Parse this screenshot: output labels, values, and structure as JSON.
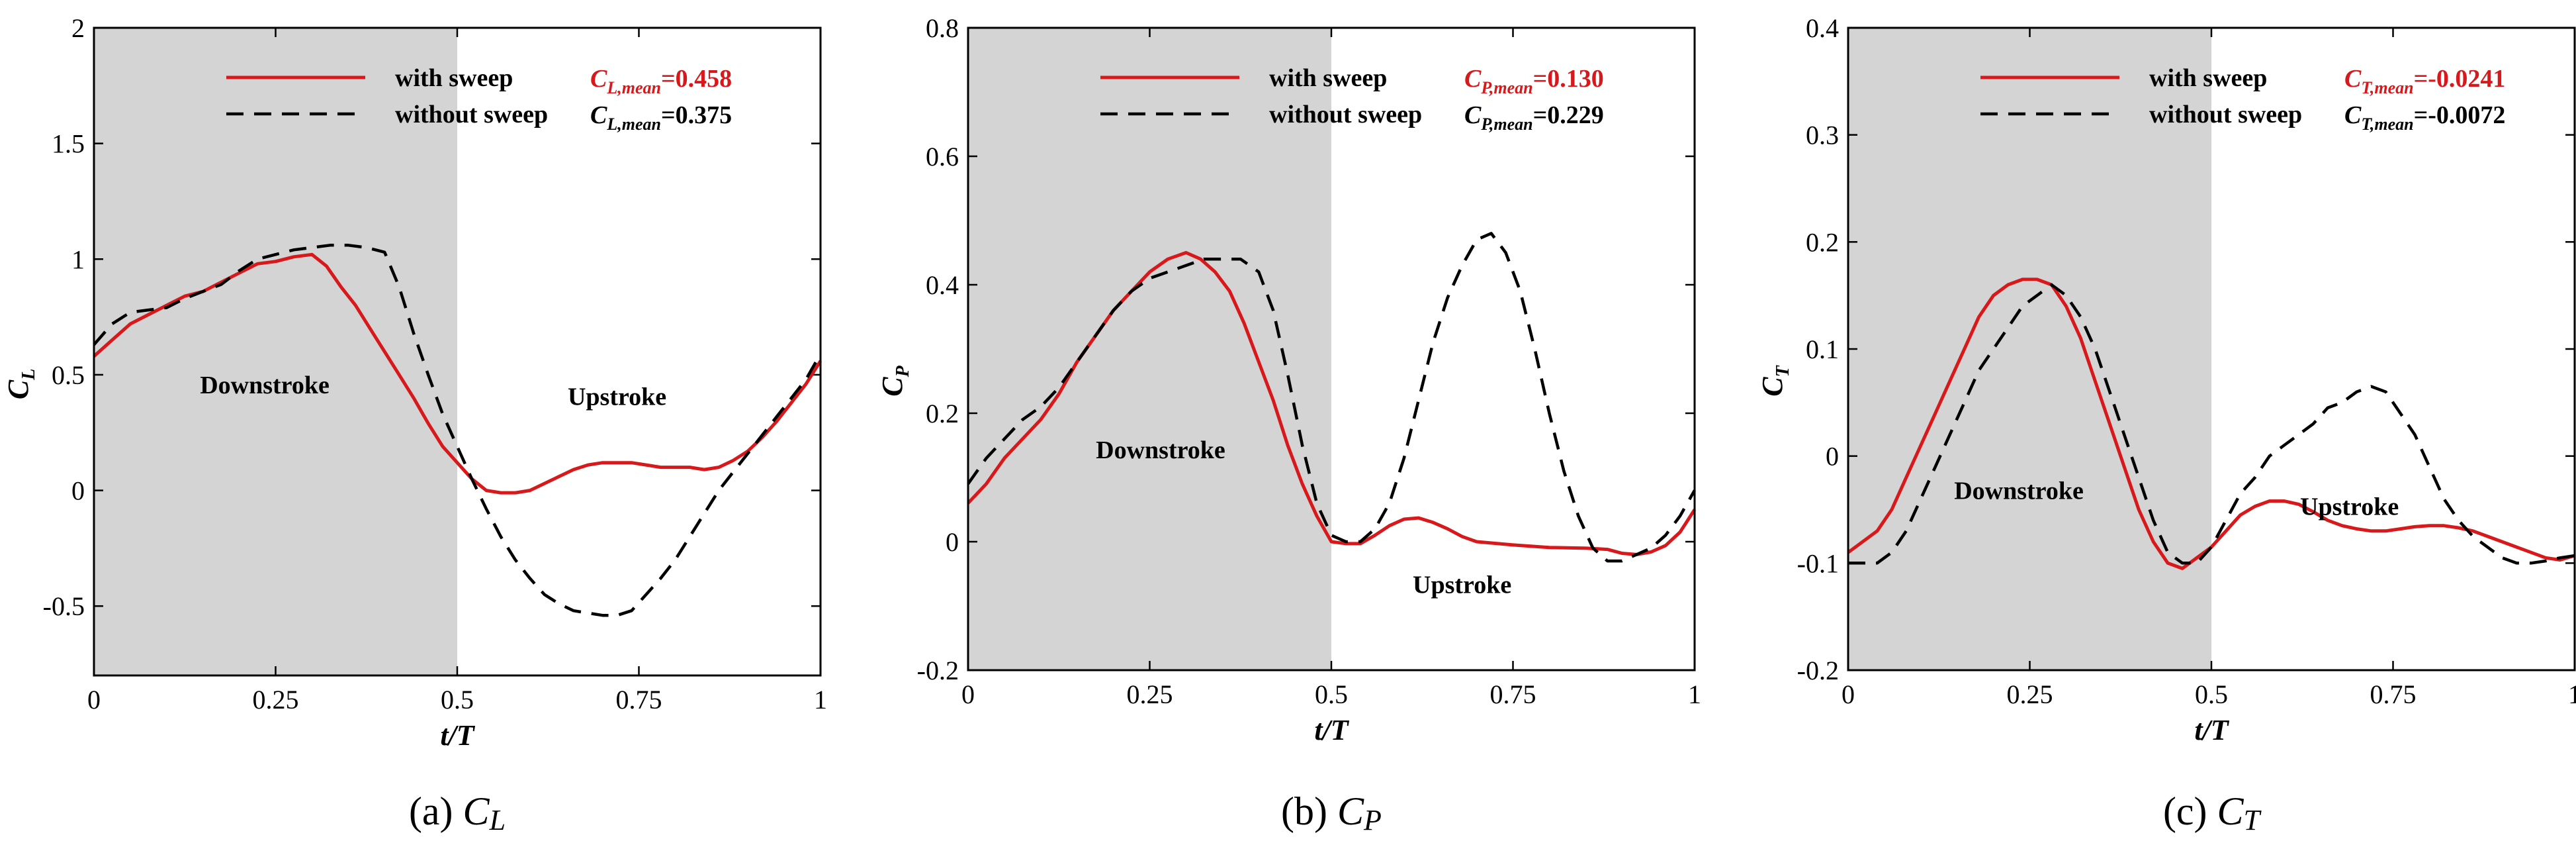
{
  "figure": {
    "panels_caption_note": ""
  },
  "legend": {
    "with_sweep": "with sweep",
    "without_sweep": "without sweep"
  },
  "colors": {
    "with_sweep": "#d7191c",
    "without_sweep": "#000000",
    "downstroke_shade": "#d4d4d4",
    "mean_with": "#d7191c",
    "mean_without": "#000000"
  },
  "chart_data": [
    {
      "id": "a",
      "type": "line",
      "caption_letter": "(a)",
      "caption_symbol": "C",
      "caption_sub": "L",
      "ylabel_main": "C",
      "ylabel_sub": "L",
      "xlabel": "t/T",
      "xlim": [
        0,
        1
      ],
      "ylim": [
        -0.8,
        2
      ],
      "xticks": [
        0,
        0.25,
        0.5,
        0.75,
        1
      ],
      "xtick_labels": [
        "0",
        "0.25",
        "0.5",
        "0.75",
        "1"
      ],
      "yticks": [
        -0.5,
        0,
        0.5,
        1,
        1.5,
        2
      ],
      "ytick_labels": [
        "-0.5",
        "0",
        "0.5",
        "1",
        "1.5",
        "2"
      ],
      "shade_x": [
        0,
        0.5
      ],
      "phase_labels": [
        {
          "text": "Downstroke",
          "x": 0.235,
          "y": 0.42
        },
        {
          "text": "Upstroke",
          "x": 0.72,
          "y": 0.37
        }
      ],
      "mean_labels": [
        {
          "sym": "C",
          "sub": "L,mean",
          "value": "=0.458",
          "series": "with"
        },
        {
          "sym": "C",
          "sub": "L,mean",
          "value": "=0.375",
          "series": "without"
        }
      ],
      "series": [
        {
          "name": "with sweep",
          "x": [
            0,
            0.025,
            0.05,
            0.075,
            0.1,
            0.125,
            0.15,
            0.175,
            0.2,
            0.225,
            0.25,
            0.275,
            0.3,
            0.32,
            0.34,
            0.36,
            0.38,
            0.4,
            0.42,
            0.44,
            0.46,
            0.48,
            0.5,
            0.52,
            0.54,
            0.56,
            0.58,
            0.6,
            0.62,
            0.64,
            0.66,
            0.68,
            0.7,
            0.72,
            0.74,
            0.76,
            0.78,
            0.8,
            0.82,
            0.84,
            0.86,
            0.88,
            0.9,
            0.92,
            0.94,
            0.96,
            0.98,
            1.0
          ],
          "values": [
            0.58,
            0.65,
            0.72,
            0.76,
            0.8,
            0.84,
            0.86,
            0.9,
            0.94,
            0.98,
            0.99,
            1.01,
            1.02,
            0.97,
            0.88,
            0.8,
            0.7,
            0.6,
            0.5,
            0.4,
            0.29,
            0.19,
            0.12,
            0.05,
            0.0,
            -0.01,
            -0.01,
            0.0,
            0.03,
            0.06,
            0.09,
            0.11,
            0.12,
            0.12,
            0.12,
            0.11,
            0.1,
            0.1,
            0.1,
            0.09,
            0.1,
            0.13,
            0.17,
            0.23,
            0.3,
            0.38,
            0.46,
            0.56
          ]
        },
        {
          "name": "without sweep",
          "x": [
            0,
            0.025,
            0.05,
            0.075,
            0.1,
            0.125,
            0.15,
            0.175,
            0.2,
            0.225,
            0.25,
            0.275,
            0.3,
            0.325,
            0.35,
            0.375,
            0.4,
            0.42,
            0.44,
            0.46,
            0.48,
            0.5,
            0.52,
            0.54,
            0.56,
            0.58,
            0.6,
            0.62,
            0.64,
            0.66,
            0.68,
            0.7,
            0.72,
            0.74,
            0.76,
            0.78,
            0.8,
            0.82,
            0.84,
            0.86,
            0.88,
            0.9,
            0.92,
            0.94,
            0.96,
            0.98,
            1.0
          ],
          "values": [
            0.63,
            0.72,
            0.77,
            0.78,
            0.79,
            0.83,
            0.86,
            0.89,
            0.95,
            1.0,
            1.02,
            1.04,
            1.05,
            1.06,
            1.06,
            1.05,
            1.03,
            0.88,
            0.68,
            0.5,
            0.33,
            0.19,
            0.05,
            -0.08,
            -0.2,
            -0.3,
            -0.38,
            -0.45,
            -0.49,
            -0.52,
            -0.53,
            -0.54,
            -0.54,
            -0.52,
            -0.45,
            -0.38,
            -0.3,
            -0.2,
            -0.1,
            0.0,
            0.08,
            0.16,
            0.24,
            0.32,
            0.4,
            0.48,
            0.59
          ]
        }
      ]
    },
    {
      "id": "b",
      "type": "line",
      "caption_letter": "(b)",
      "caption_symbol": "C",
      "caption_sub": "P",
      "ylabel_main": "C",
      "ylabel_sub": "P",
      "xlabel": "t/T",
      "xlim": [
        0,
        1
      ],
      "ylim": [
        -0.2,
        0.8
      ],
      "xticks": [
        0,
        0.25,
        0.5,
        0.75,
        1
      ],
      "xtick_labels": [
        "0",
        "0.25",
        "0.5",
        "0.75",
        "1"
      ],
      "yticks": [
        -0.2,
        0,
        0.2,
        0.4,
        0.6,
        0.8
      ],
      "ytick_labels": [
        "-0.2",
        "0",
        "0.2",
        "0.4",
        "0.6",
        "0.8"
      ],
      "shade_x": [
        0,
        0.5
      ],
      "phase_labels": [
        {
          "text": "Downstroke",
          "x": 0.265,
          "y": 0.13
        },
        {
          "text": "Upstroke",
          "x": 0.68,
          "y": -0.08
        }
      ],
      "mean_labels": [
        {
          "sym": "C",
          "sub": "P,mean",
          "value": "=0.130",
          "series": "with"
        },
        {
          "sym": "C",
          "sub": "P,mean",
          "value": "=0.229",
          "series": "without"
        }
      ],
      "series": [
        {
          "name": "with sweep",
          "x": [
            0,
            0.025,
            0.05,
            0.075,
            0.1,
            0.125,
            0.15,
            0.175,
            0.2,
            0.225,
            0.25,
            0.275,
            0.3,
            0.32,
            0.34,
            0.36,
            0.38,
            0.4,
            0.42,
            0.44,
            0.46,
            0.48,
            0.5,
            0.52,
            0.54,
            0.56,
            0.58,
            0.6,
            0.62,
            0.64,
            0.66,
            0.68,
            0.7,
            0.75,
            0.8,
            0.85,
            0.88,
            0.9,
            0.92,
            0.94,
            0.96,
            0.98,
            1.0
          ],
          "values": [
            0.06,
            0.09,
            0.13,
            0.16,
            0.19,
            0.23,
            0.28,
            0.32,
            0.36,
            0.39,
            0.42,
            0.44,
            0.45,
            0.44,
            0.42,
            0.39,
            0.34,
            0.28,
            0.22,
            0.15,
            0.09,
            0.04,
            0.0,
            -0.003,
            -0.003,
            0.01,
            0.025,
            0.035,
            0.037,
            0.03,
            0.02,
            0.008,
            0.0,
            -0.005,
            -0.009,
            -0.01,
            -0.012,
            -0.018,
            -0.02,
            -0.016,
            -0.006,
            0.015,
            0.05
          ]
        },
        {
          "name": "without sweep",
          "x": [
            0,
            0.025,
            0.05,
            0.075,
            0.1,
            0.125,
            0.15,
            0.175,
            0.2,
            0.225,
            0.25,
            0.275,
            0.3,
            0.325,
            0.35,
            0.375,
            0.4,
            0.42,
            0.44,
            0.46,
            0.48,
            0.5,
            0.52,
            0.54,
            0.56,
            0.58,
            0.6,
            0.62,
            0.64,
            0.66,
            0.68,
            0.7,
            0.72,
            0.74,
            0.76,
            0.78,
            0.8,
            0.82,
            0.84,
            0.86,
            0.88,
            0.9,
            0.92,
            0.94,
            0.96,
            0.98,
            1.0
          ],
          "values": [
            0.09,
            0.13,
            0.16,
            0.19,
            0.21,
            0.24,
            0.28,
            0.32,
            0.36,
            0.39,
            0.41,
            0.42,
            0.43,
            0.44,
            0.44,
            0.44,
            0.42,
            0.36,
            0.26,
            0.15,
            0.06,
            0.01,
            0.0,
            0.0,
            0.02,
            0.06,
            0.13,
            0.22,
            0.31,
            0.38,
            0.43,
            0.47,
            0.48,
            0.45,
            0.39,
            0.3,
            0.2,
            0.11,
            0.04,
            -0.01,
            -0.03,
            -0.03,
            -0.02,
            -0.01,
            0.01,
            0.04,
            0.08
          ]
        }
      ]
    },
    {
      "id": "c",
      "type": "line",
      "caption_letter": "(c)",
      "caption_symbol": "C",
      "caption_sub": "T",
      "ylabel_main": "C",
      "ylabel_sub": "T",
      "xlabel": "t/T",
      "xlim": [
        0,
        1
      ],
      "ylim": [
        -0.2,
        0.4
      ],
      "xticks": [
        0,
        0.25,
        0.5,
        0.75,
        1
      ],
      "xtick_labels": [
        "0",
        "0.25",
        "0.5",
        "0.75",
        "1"
      ],
      "yticks": [
        -0.2,
        -0.1,
        0,
        0.1,
        0.2,
        0.3,
        0.4
      ],
      "ytick_labels": [
        "-0.2",
        "-0.1",
        "0",
        "0.1",
        "0.2",
        "0.3",
        "0.4"
      ],
      "shade_x": [
        0,
        0.5
      ],
      "phase_labels": [
        {
          "text": "Downstroke",
          "x": 0.235,
          "y": -0.04
        },
        {
          "text": "Upstroke",
          "x": 0.69,
          "y": -0.055
        }
      ],
      "mean_labels": [
        {
          "sym": "C",
          "sub": "T,mean",
          "value": "=-0.0241",
          "series": "with"
        },
        {
          "sym": "C",
          "sub": "T,mean",
          "value": "=-0.0072",
          "series": "without"
        }
      ],
      "series": [
        {
          "name": "with sweep",
          "x": [
            0,
            0.02,
            0.04,
            0.06,
            0.08,
            0.1,
            0.12,
            0.14,
            0.16,
            0.18,
            0.2,
            0.22,
            0.24,
            0.26,
            0.28,
            0.3,
            0.32,
            0.34,
            0.36,
            0.38,
            0.4,
            0.42,
            0.44,
            0.46,
            0.48,
            0.5,
            0.52,
            0.54,
            0.56,
            0.58,
            0.6,
            0.62,
            0.64,
            0.66,
            0.68,
            0.7,
            0.72,
            0.74,
            0.76,
            0.78,
            0.8,
            0.82,
            0.84,
            0.86,
            0.88,
            0.9,
            0.92,
            0.94,
            0.96,
            0.98,
            1.0
          ],
          "values": [
            -0.09,
            -0.08,
            -0.07,
            -0.05,
            -0.02,
            0.01,
            0.04,
            0.07,
            0.1,
            0.13,
            0.15,
            0.16,
            0.165,
            0.165,
            0.16,
            0.14,
            0.11,
            0.07,
            0.03,
            -0.01,
            -0.05,
            -0.08,
            -0.1,
            -0.105,
            -0.095,
            -0.085,
            -0.07,
            -0.055,
            -0.047,
            -0.042,
            -0.042,
            -0.045,
            -0.052,
            -0.06,
            -0.065,
            -0.068,
            -0.07,
            -0.07,
            -0.068,
            -0.066,
            -0.065,
            -0.065,
            -0.067,
            -0.07,
            -0.075,
            -0.08,
            -0.085,
            -0.09,
            -0.095,
            -0.097,
            -0.093
          ]
        },
        {
          "name": "without sweep",
          "x": [
            0,
            0.02,
            0.04,
            0.06,
            0.08,
            0.1,
            0.12,
            0.14,
            0.16,
            0.18,
            0.2,
            0.22,
            0.24,
            0.26,
            0.28,
            0.3,
            0.32,
            0.34,
            0.36,
            0.38,
            0.4,
            0.42,
            0.44,
            0.46,
            0.48,
            0.5,
            0.52,
            0.54,
            0.56,
            0.58,
            0.6,
            0.62,
            0.64,
            0.66,
            0.68,
            0.7,
            0.72,
            0.74,
            0.76,
            0.78,
            0.8,
            0.82,
            0.84,
            0.86,
            0.88,
            0.9,
            0.92,
            0.94,
            0.96,
            0.98,
            1.0
          ],
          "values": [
            -0.1,
            -0.1,
            -0.1,
            -0.09,
            -0.07,
            -0.04,
            -0.01,
            0.02,
            0.05,
            0.08,
            0.1,
            0.12,
            0.14,
            0.15,
            0.16,
            0.15,
            0.13,
            0.1,
            0.06,
            0.02,
            -0.02,
            -0.06,
            -0.09,
            -0.1,
            -0.1,
            -0.085,
            -0.06,
            -0.035,
            -0.02,
            0.0,
            0.01,
            0.02,
            0.03,
            0.045,
            0.05,
            0.06,
            0.065,
            0.06,
            0.04,
            0.02,
            -0.01,
            -0.04,
            -0.06,
            -0.075,
            -0.085,
            -0.095,
            -0.1,
            -0.1,
            -0.098,
            -0.095,
            -0.093
          ]
        }
      ]
    }
  ]
}
